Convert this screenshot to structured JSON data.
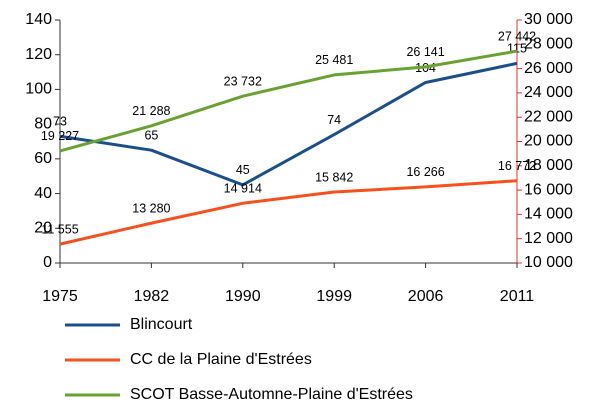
{
  "chart_data": {
    "type": "line",
    "categories": [
      "1975",
      "1982",
      "1990",
      "1999",
      "2006",
      "2011"
    ],
    "series": [
      {
        "name": "Blincourt",
        "color": "#1b4f8c",
        "values": [
          73,
          65,
          45,
          74,
          104,
          115
        ]
      },
      {
        "name": "CC de la Plaine d'Estrées",
        "color": "#f4511e",
        "axis": "y2",
        "values": [
          11555,
          13280,
          14914,
          15842,
          16266,
          16772
        ],
        "value_labels": [
          "11 555",
          "13 280",
          "14 914",
          "15 842",
          "16 266",
          "16 772"
        ]
      },
      {
        "name": "SCOT Basse-Automne-Plaine d'Estrées",
        "color": "#6aa232",
        "axis": "y2",
        "values": [
          19227,
          21288,
          23732,
          25481,
          26141,
          27442
        ],
        "value_labels": [
          "19 227",
          "21 288",
          "23 732",
          "25 481",
          "26 141",
          "27 442"
        ]
      }
    ],
    "ylim": [
      0,
      140
    ],
    "yticks": [
      0,
      20,
      40,
      60,
      80,
      100,
      120,
      140
    ],
    "y2lim": [
      10000,
      30000
    ],
    "y2ticks": [
      {
        "value": 10000,
        "label": "10 000"
      },
      {
        "value": 12000,
        "label": "12 000"
      },
      {
        "value": 14000,
        "label": "14 000"
      },
      {
        "value": 16000,
        "label": "16 000"
      },
      {
        "value": 18000,
        "label": "18 000"
      },
      {
        "value": 20000,
        "label": "20 000"
      },
      {
        "value": 22000,
        "label": "22 000"
      },
      {
        "value": 24000,
        "label": "24 000"
      },
      {
        "value": 26000,
        "label": "26 000"
      },
      {
        "value": 28000,
        "label": "28 000"
      },
      {
        "value": 30000,
        "label": "30 000"
      }
    ],
    "y2color": "#e53030",
    "grid": false,
    "legend": "bottom"
  }
}
